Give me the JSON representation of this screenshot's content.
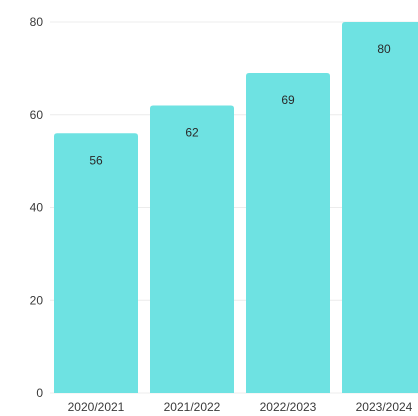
{
  "chart_data": {
    "type": "bar",
    "categories": [
      "2020/2021",
      "2021/2022",
      "2022/2023",
      "2023/2024"
    ],
    "values": [
      56,
      62,
      69,
      80
    ],
    "data_labels": [
      "56",
      "62",
      "69",
      "80"
    ],
    "y_ticks": [
      0,
      20,
      40,
      60,
      80
    ],
    "y_tick_labels": [
      "0",
      "20",
      "40",
      "60",
      "80"
    ],
    "ylim": [
      0,
      80
    ],
    "title": "",
    "xlabel": "",
    "ylabel": "",
    "grid": true,
    "colors": {
      "bar": "#6ee2e2",
      "grid": "#ececec",
      "text": "#3a3a3a"
    }
  }
}
